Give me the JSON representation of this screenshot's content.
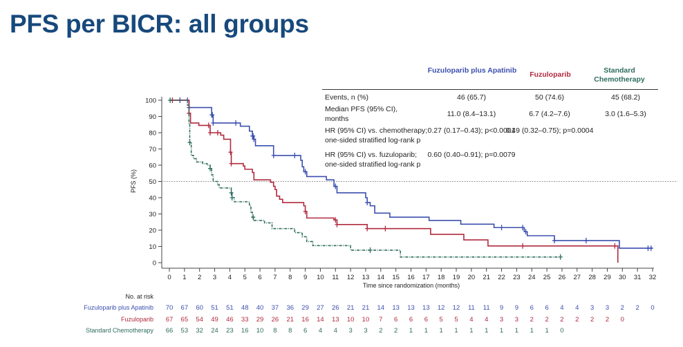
{
  "title": "PFS per BICR: all groups",
  "table": {
    "headers": [
      "Fuzuloparib plus Apatinib",
      "Fuzuloparib",
      "Standard Chemotherapy"
    ],
    "rows": [
      {
        "label": "Events, n (%)",
        "values": [
          "46 (65.7)",
          "50 (74.6)",
          "45 (68.2)"
        ]
      },
      {
        "label": "Median PFS (95% CI), months",
        "values": [
          "11.0 (8.4–13.1)",
          "6.7 (4.2–7.6)",
          "3.0 (1.6–5.3)"
        ]
      },
      {
        "label": "HR (95% CI) vs. chemotherapy; one-sided stratified log-rank p",
        "values": [
          "0.27 (0.17–0.43); p<0.0001",
          "0.49 (0.32–0.75); p=0.0004",
          ""
        ]
      },
      {
        "label": "HR (95% CI) vs. fuzuloparib; one-sided stratified log-rank p",
        "values": [
          "0.60 (0.40–0.91); p=0.0079",
          "",
          ""
        ]
      }
    ]
  },
  "chart_data": {
    "type": "line",
    "subtype": "kaplan-meier step",
    "xlabel": "Time since randomization (months)",
    "ylabel": "PFS (%)",
    "xlim": [
      0,
      32
    ],
    "ylim": [
      0,
      100
    ],
    "xticks": [
      0,
      1,
      2,
      3,
      4,
      5,
      6,
      7,
      8,
      9,
      10,
      11,
      12,
      13,
      14,
      15,
      16,
      17,
      18,
      19,
      20,
      21,
      22,
      23,
      24,
      25,
      26,
      27,
      28,
      29,
      30,
      31,
      32
    ],
    "yticks": [
      0,
      10,
      20,
      30,
      40,
      50,
      60,
      70,
      80,
      90,
      100
    ],
    "reference_line_y": 50,
    "grid": false,
    "series": [
      {
        "name": "Fuzuloparib plus Apatinib",
        "color": "#3b4fae",
        "dash": "solid",
        "steps": [
          [
            0,
            100
          ],
          [
            1.3,
            95.5
          ],
          [
            2.8,
            91
          ],
          [
            2.9,
            86
          ],
          [
            4.7,
            84
          ],
          [
            5.3,
            81
          ],
          [
            5.5,
            78
          ],
          [
            5.6,
            76
          ],
          [
            5.7,
            72
          ],
          [
            6.9,
            66
          ],
          [
            8.7,
            63
          ],
          [
            8.8,
            59
          ],
          [
            8.9,
            56
          ],
          [
            9.1,
            53
          ],
          [
            10.4,
            51
          ],
          [
            10.9,
            47
          ],
          [
            11.1,
            43
          ],
          [
            13.0,
            40
          ],
          [
            13.1,
            37
          ],
          [
            13.3,
            35
          ],
          [
            13.6,
            30.5
          ],
          [
            14.6,
            28
          ],
          [
            17.2,
            26
          ],
          [
            19.3,
            23.7
          ],
          [
            21.5,
            21.6
          ],
          [
            23.5,
            19.1
          ],
          [
            23.7,
            16.6
          ],
          [
            25.5,
            13.6
          ],
          [
            29.8,
            8.9
          ],
          [
            32,
            8.9
          ]
        ],
        "censored": [
          0.7,
          1.2,
          1.3,
          2.8,
          2.85,
          2.9,
          4.4,
          5.5,
          5.55,
          5.6,
          6.9,
          8.3,
          9.0,
          11.0,
          13.1,
          22.0,
          23.4,
          23.6,
          25.5,
          27.6,
          31.7,
          31.9
        ]
      },
      {
        "name": "Fuzuloparib",
        "color": "#b02a3e",
        "dash": "solid",
        "steps": [
          [
            0,
            100
          ],
          [
            1.3,
            92
          ],
          [
            1.4,
            86
          ],
          [
            1.95,
            84.5
          ],
          [
            2.7,
            80
          ],
          [
            3.4,
            78.5
          ],
          [
            3.6,
            76
          ],
          [
            4.05,
            68
          ],
          [
            4.1,
            61
          ],
          [
            4.9,
            59.5
          ],
          [
            5.0,
            57.5
          ],
          [
            5.5,
            55.5
          ],
          [
            5.6,
            51
          ],
          [
            6.7,
            49.5
          ],
          [
            6.9,
            47
          ],
          [
            7.0,
            45
          ],
          [
            7.1,
            41
          ],
          [
            7.3,
            39
          ],
          [
            7.5,
            37
          ],
          [
            8.9,
            35
          ],
          [
            9.0,
            31.5
          ],
          [
            9.1,
            27.5
          ],
          [
            10.9,
            26.3
          ],
          [
            11.1,
            23.5
          ],
          [
            13.1,
            21
          ],
          [
            17.3,
            17.4
          ],
          [
            19.5,
            14
          ],
          [
            21.1,
            10.3
          ],
          [
            29.7,
            0
          ]
        ],
        "censored": [
          0.2,
          1.3,
          2.6,
          2.7,
          3.2,
          4.05,
          4.1,
          9.0,
          11.0,
          11.1,
          13.1,
          14.3,
          23.4,
          29.5
        ]
      },
      {
        "name": "Standard Chemotherapy",
        "color": "#2e6d5e",
        "dash": "dashdot",
        "steps": [
          [
            0,
            100
          ],
          [
            1.2,
            97
          ],
          [
            1.3,
            85
          ],
          [
            1.35,
            74
          ],
          [
            1.45,
            66
          ],
          [
            1.6,
            64
          ],
          [
            1.8,
            62
          ],
          [
            2.2,
            61
          ],
          [
            2.5,
            60
          ],
          [
            2.7,
            58
          ],
          [
            2.8,
            54
          ],
          [
            2.9,
            50
          ],
          [
            3.2,
            48
          ],
          [
            3.3,
            46
          ],
          [
            4.1,
            43
          ],
          [
            4.15,
            40
          ],
          [
            4.3,
            37.5
          ],
          [
            5.3,
            35
          ],
          [
            5.4,
            31
          ],
          [
            5.5,
            28
          ],
          [
            5.6,
            26
          ],
          [
            6.3,
            24.5
          ],
          [
            6.8,
            21
          ],
          [
            8.3,
            18.5
          ],
          [
            8.8,
            16
          ],
          [
            9.1,
            13
          ],
          [
            9.5,
            10.5
          ],
          [
            12.0,
            7.7
          ],
          [
            15.3,
            3.5
          ],
          [
            25.9,
            3.5
          ]
        ],
        "censored": [
          0.05,
          1.35,
          2.7,
          4.1,
          4.15,
          5.55,
          13.3,
          25.9
        ]
      }
    ],
    "at_risk": {
      "title": "No. at risk",
      "rows": [
        {
          "name": "Fuzuloparib plus Apatinib",
          "values": [
            70,
            67,
            60,
            51,
            51,
            48,
            40,
            37,
            36,
            29,
            27,
            26,
            21,
            21,
            14,
            13,
            13,
            13,
            12,
            12,
            11,
            11,
            9,
            9,
            6,
            6,
            4,
            4,
            3,
            3,
            2,
            2,
            0
          ]
        },
        {
          "name": "Fuzuloparib",
          "values": [
            67,
            65,
            54,
            49,
            46,
            33,
            29,
            26,
            21,
            16,
            14,
            13,
            10,
            10,
            7,
            6,
            6,
            6,
            5,
            5,
            4,
            4,
            3,
            3,
            2,
            2,
            2,
            2,
            2,
            2,
            0
          ]
        },
        {
          "name": "Standard Chemotherapy",
          "values": [
            66,
            53,
            32,
            24,
            23,
            16,
            10,
            8,
            8,
            6,
            4,
            4,
            3,
            3,
            2,
            2,
            1,
            1,
            1,
            1,
            1,
            1,
            1,
            1,
            1,
            1,
            0
          ]
        }
      ]
    }
  }
}
